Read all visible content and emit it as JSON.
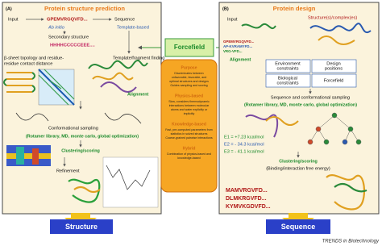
{
  "panel_a": {
    "label": "(A)",
    "title": "Protein structure prediction",
    "input_label": "Input",
    "input_sequence": "GPEMVRGQVFD...",
    "sequence_label": "Sequence",
    "ab_initio": "Ab initio",
    "template_based": "Template-based",
    "secondary_structure": "Secondary structure",
    "ss_string": "HHHHCCCCCEEE....",
    "contact_label": [
      "β-sheet topology and residue-",
      "residue contact distance"
    ],
    "template_finding": "Template/fragment finding",
    "alignment": "Alignment",
    "conformational_sampling": "Conformational sampling",
    "sampling_methods": "(Rotamer library, MD, monte carlo, global optimization)",
    "clustering": "Clustering/scoring",
    "refinement": "Refinement",
    "output": "Structure"
  },
  "forcefield": {
    "title": "Forcefield",
    "sections": [
      {
        "heading": "Purpose",
        "lines": [
          "Discriminates between",
          "unfavorable, favorable, and",
          "optimal structures and designs",
          "Guides sampling and scoring"
        ]
      },
      {
        "heading": "Physics-based",
        "lines": [
          "Slow, considers thermodynamic",
          "interactions between molecular",
          "atoms and water explicitly or",
          "implicitly"
        ]
      },
      {
        "heading": "Knowledge-based",
        "lines": [
          "Fast, pre-computed parameters from",
          "statistics in solved structures",
          "Coarse-grained pairwise interactions"
        ]
      },
      {
        "heading": "Hybrid",
        "lines": [
          "Combination of physics-based and",
          "knowledge-based"
        ]
      }
    ]
  },
  "panel_b": {
    "label": "(B)",
    "title": "Protein design",
    "input_label": "Input",
    "input_structures": "Structure(s)/complex(es)",
    "alignment_sequences": [
      "GPEMVRGQVFD...",
      "AP-KVRAMYFD...",
      "VRG-VFD..."
    ],
    "alignment": "Alignment",
    "constraints": [
      [
        "Environment",
        "constraints"
      ],
      [
        "Design",
        "positions"
      ],
      [
        "Biological",
        "constraints"
      ],
      [
        "Forcefield"
      ]
    ],
    "sampling": "Sequence and conformational sampling",
    "sampling_methods": "(Rotamer library, MD, monte carlo, global optimization)",
    "energies": [
      "E1 = +7.23 kcal/mol",
      "E2 = - 34.3 kcal/mol",
      "E3 = - 41.1 kcal/mol"
    ],
    "clustering": "Clustering/scoring",
    "binding": "(Binding/interaction free energy)",
    "designed_sequences": [
      "MAMVRGVFD...",
      "DLMKRGVFD...",
      "KYMVKGDVFD..."
    ],
    "output": "Sequence"
  },
  "footer": "TRENDS in Biotechnology"
}
